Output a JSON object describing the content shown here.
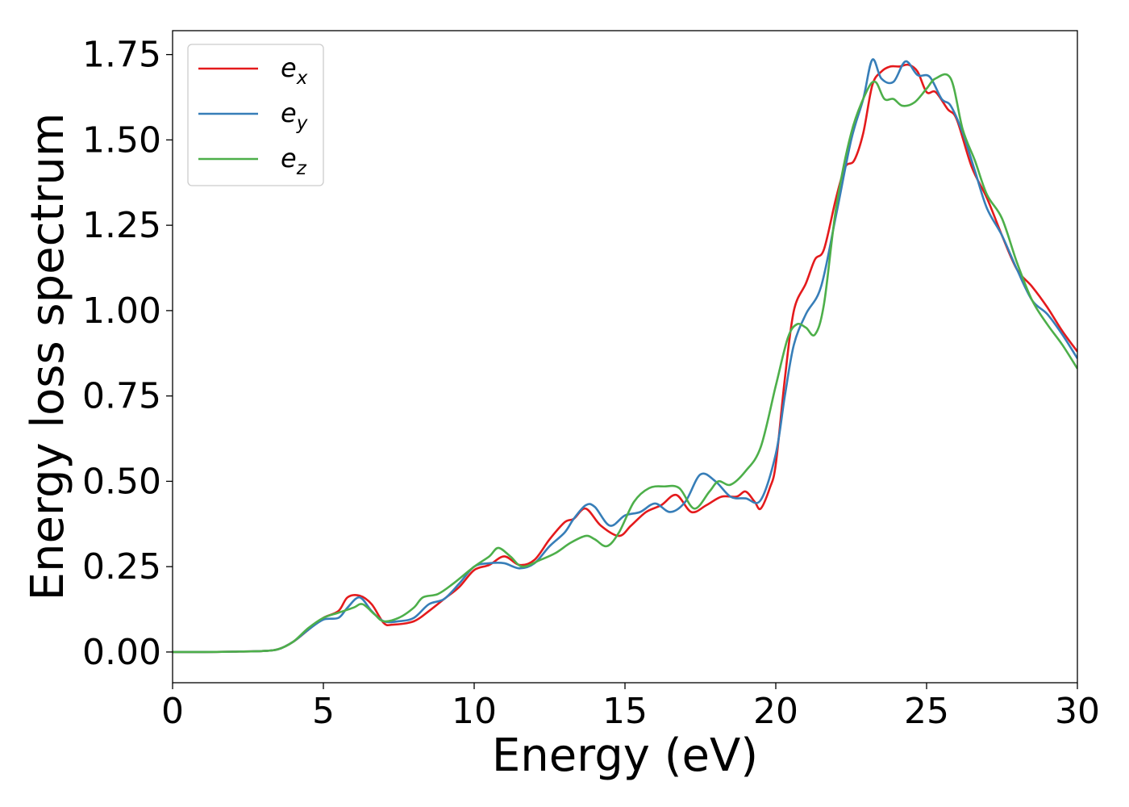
{
  "chart_data": {
    "type": "line",
    "title": "",
    "xlabel": "Energy (eV)",
    "ylabel": "Energy loss spectrum",
    "xlim": [
      0,
      30
    ],
    "ylim": [
      -0.09,
      1.82
    ],
    "xticks": [
      0,
      5,
      10,
      15,
      20,
      25,
      30
    ],
    "xtick_labels": [
      "0",
      "5",
      "10",
      "15",
      "20",
      "25",
      "30"
    ],
    "yticks": [
      0.0,
      0.25,
      0.5,
      0.75,
      1.0,
      1.25,
      1.5,
      1.75
    ],
    "ytick_labels": [
      "0.00",
      "0.25",
      "0.50",
      "0.75",
      "1.00",
      "1.25",
      "1.50",
      "1.75"
    ],
    "grid": false,
    "legend_position": "top-left",
    "series": [
      {
        "name": "e_x",
        "base": "e",
        "sub": "x",
        "color": "#e41a1c",
        "points": [
          [
            0,
            0
          ],
          [
            1,
            0
          ],
          [
            2,
            0.001
          ],
          [
            3,
            0.003
          ],
          [
            3.5,
            0.008
          ],
          [
            4,
            0.03
          ],
          [
            4.5,
            0.065
          ],
          [
            5,
            0.1
          ],
          [
            5.5,
            0.12
          ],
          [
            5.8,
            0.16
          ],
          [
            6.2,
            0.165
          ],
          [
            6.6,
            0.14
          ],
          [
            7,
            0.085
          ],
          [
            7.3,
            0.08
          ],
          [
            8,
            0.09
          ],
          [
            8.5,
            0.12
          ],
          [
            9,
            0.155
          ],
          [
            9.5,
            0.19
          ],
          [
            10,
            0.24
          ],
          [
            10.5,
            0.255
          ],
          [
            11,
            0.28
          ],
          [
            11.5,
            0.255
          ],
          [
            12,
            0.27
          ],
          [
            12.5,
            0.33
          ],
          [
            13,
            0.38
          ],
          [
            13.3,
            0.39
          ],
          [
            13.7,
            0.42
          ],
          [
            14.2,
            0.37
          ],
          [
            14.8,
            0.34
          ],
          [
            15.2,
            0.37
          ],
          [
            15.7,
            0.41
          ],
          [
            16.2,
            0.43
          ],
          [
            16.7,
            0.46
          ],
          [
            17.2,
            0.41
          ],
          [
            17.7,
            0.43
          ],
          [
            18.2,
            0.455
          ],
          [
            18.7,
            0.455
          ],
          [
            19,
            0.47
          ],
          [
            19.3,
            0.44
          ],
          [
            19.5,
            0.42
          ],
          [
            19.8,
            0.48
          ],
          [
            20,
            0.55
          ],
          [
            20.3,
            0.8
          ],
          [
            20.6,
            1.0
          ],
          [
            21,
            1.08
          ],
          [
            21.3,
            1.15
          ],
          [
            21.6,
            1.18
          ],
          [
            22,
            1.33
          ],
          [
            22.3,
            1.42
          ],
          [
            22.6,
            1.44
          ],
          [
            22.9,
            1.52
          ],
          [
            23.2,
            1.66
          ],
          [
            23.5,
            1.7
          ],
          [
            23.8,
            1.715
          ],
          [
            24.1,
            1.715
          ],
          [
            24.4,
            1.72
          ],
          [
            24.7,
            1.7
          ],
          [
            25,
            1.64
          ],
          [
            25.3,
            1.64
          ],
          [
            25.7,
            1.59
          ],
          [
            26,
            1.56
          ],
          [
            26.5,
            1.42
          ],
          [
            27,
            1.33
          ],
          [
            27.5,
            1.22
          ],
          [
            28,
            1.12
          ],
          [
            28.5,
            1.07
          ],
          [
            29,
            1.01
          ],
          [
            29.5,
            0.94
          ],
          [
            30,
            0.88
          ]
        ]
      },
      {
        "name": "e_y",
        "base": "e",
        "sub": "y",
        "color": "#377eb8",
        "points": [
          [
            0,
            0
          ],
          [
            1,
            0
          ],
          [
            2,
            0.001
          ],
          [
            3,
            0.003
          ],
          [
            3.5,
            0.008
          ],
          [
            4,
            0.03
          ],
          [
            4.5,
            0.065
          ],
          [
            5,
            0.095
          ],
          [
            5.5,
            0.1
          ],
          [
            5.8,
            0.13
          ],
          [
            6.2,
            0.16
          ],
          [
            6.6,
            0.12
          ],
          [
            7,
            0.09
          ],
          [
            7.5,
            0.09
          ],
          [
            8,
            0.1
          ],
          [
            8.5,
            0.14
          ],
          [
            9,
            0.155
          ],
          [
            9.5,
            0.2
          ],
          [
            10,
            0.25
          ],
          [
            10.5,
            0.26
          ],
          [
            11,
            0.26
          ],
          [
            11.5,
            0.245
          ],
          [
            12,
            0.26
          ],
          [
            12.5,
            0.31
          ],
          [
            13,
            0.35
          ],
          [
            13.3,
            0.39
          ],
          [
            13.7,
            0.43
          ],
          [
            14,
            0.425
          ],
          [
            14.5,
            0.37
          ],
          [
            15,
            0.4
          ],
          [
            15.5,
            0.41
          ],
          [
            16,
            0.435
          ],
          [
            16.5,
            0.41
          ],
          [
            17,
            0.44
          ],
          [
            17.5,
            0.52
          ],
          [
            18,
            0.5
          ],
          [
            18.5,
            0.455
          ],
          [
            19,
            0.45
          ],
          [
            19.5,
            0.445
          ],
          [
            20,
            0.58
          ],
          [
            20.3,
            0.75
          ],
          [
            20.6,
            0.9
          ],
          [
            21,
            0.99
          ],
          [
            21.5,
            1.07
          ],
          [
            22,
            1.28
          ],
          [
            22.5,
            1.5
          ],
          [
            22.9,
            1.62
          ],
          [
            23.2,
            1.735
          ],
          [
            23.5,
            1.68
          ],
          [
            23.9,
            1.67
          ],
          [
            24.3,
            1.73
          ],
          [
            24.7,
            1.69
          ],
          [
            25.1,
            1.685
          ],
          [
            25.5,
            1.62
          ],
          [
            25.8,
            1.6
          ],
          [
            26.2,
            1.52
          ],
          [
            26.6,
            1.41
          ],
          [
            27,
            1.3
          ],
          [
            27.5,
            1.22
          ],
          [
            28,
            1.12
          ],
          [
            28.5,
            1.03
          ],
          [
            29,
            0.99
          ],
          [
            29.5,
            0.93
          ],
          [
            30,
            0.86
          ]
        ]
      },
      {
        "name": "e_z",
        "base": "e",
        "sub": "z",
        "color": "#4daf4a",
        "points": [
          [
            0,
            0
          ],
          [
            1,
            0
          ],
          [
            2,
            0.001
          ],
          [
            3,
            0.003
          ],
          [
            3.5,
            0.008
          ],
          [
            4,
            0.03
          ],
          [
            4.5,
            0.07
          ],
          [
            5,
            0.1
          ],
          [
            5.5,
            0.115
          ],
          [
            6,
            0.13
          ],
          [
            6.3,
            0.14
          ],
          [
            6.7,
            0.11
          ],
          [
            7,
            0.09
          ],
          [
            7.5,
            0.1
          ],
          [
            8,
            0.13
          ],
          [
            8.3,
            0.16
          ],
          [
            8.8,
            0.17
          ],
          [
            9.3,
            0.2
          ],
          [
            10,
            0.25
          ],
          [
            10.5,
            0.28
          ],
          [
            10.8,
            0.305
          ],
          [
            11.2,
            0.28
          ],
          [
            11.6,
            0.25
          ],
          [
            12.2,
            0.27
          ],
          [
            12.7,
            0.29
          ],
          [
            13.2,
            0.32
          ],
          [
            13.7,
            0.34
          ],
          [
            14,
            0.33
          ],
          [
            14.4,
            0.31
          ],
          [
            14.8,
            0.35
          ],
          [
            15.3,
            0.44
          ],
          [
            15.8,
            0.48
          ],
          [
            16.3,
            0.485
          ],
          [
            16.8,
            0.48
          ],
          [
            17.3,
            0.42
          ],
          [
            17.8,
            0.47
          ],
          [
            18.1,
            0.5
          ],
          [
            18.5,
            0.49
          ],
          [
            19,
            0.53
          ],
          [
            19.5,
            0.6
          ],
          [
            20,
            0.78
          ],
          [
            20.4,
            0.92
          ],
          [
            20.7,
            0.96
          ],
          [
            21,
            0.95
          ],
          [
            21.3,
            0.93
          ],
          [
            21.6,
            1.02
          ],
          [
            22,
            1.3
          ],
          [
            22.5,
            1.52
          ],
          [
            23,
            1.64
          ],
          [
            23.3,
            1.67
          ],
          [
            23.6,
            1.62
          ],
          [
            23.9,
            1.62
          ],
          [
            24.2,
            1.6
          ],
          [
            24.6,
            1.61
          ],
          [
            25,
            1.65
          ],
          [
            25.3,
            1.68
          ],
          [
            25.8,
            1.68
          ],
          [
            26.2,
            1.53
          ],
          [
            26.6,
            1.44
          ],
          [
            27,
            1.34
          ],
          [
            27.5,
            1.27
          ],
          [
            28,
            1.14
          ],
          [
            28.5,
            1.03
          ],
          [
            29,
            0.96
          ],
          [
            29.5,
            0.9
          ],
          [
            30,
            0.83
          ]
        ]
      }
    ]
  }
}
